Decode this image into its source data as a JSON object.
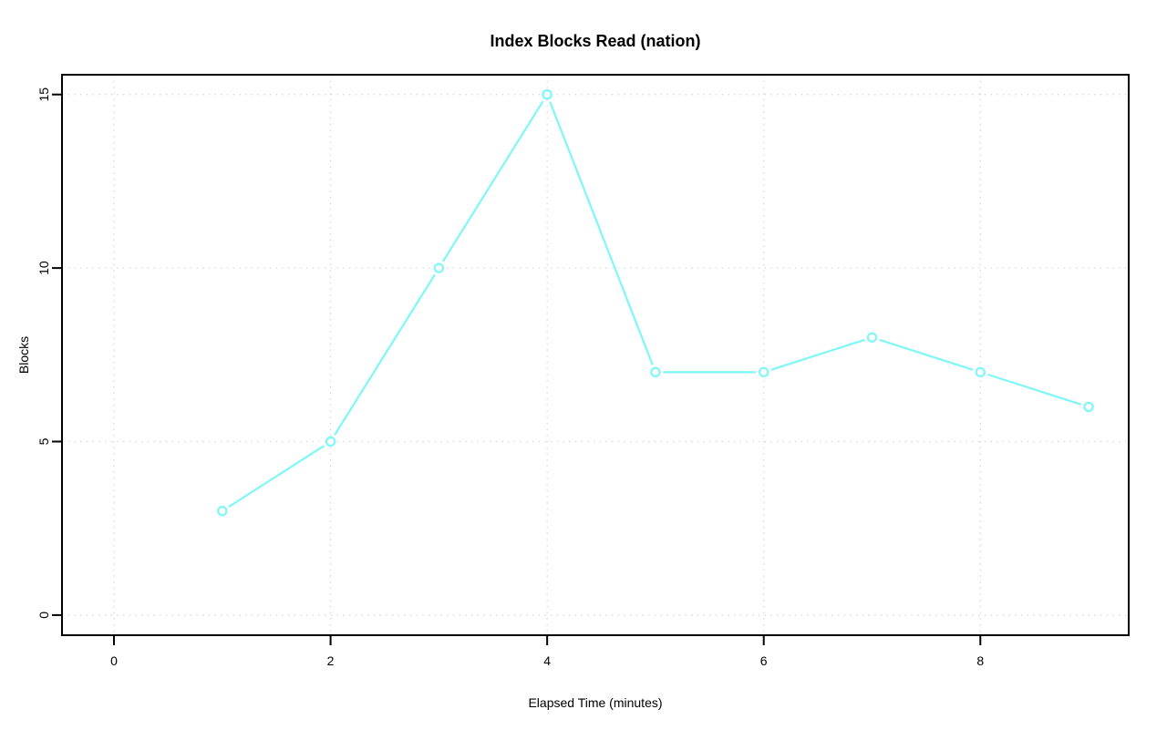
{
  "chart_data": {
    "type": "line",
    "title": "Index Blocks Read (nation)",
    "xlabel": "Elapsed Time (minutes)",
    "ylabel": "Blocks",
    "x": [
      1,
      2,
      3,
      4,
      5,
      6,
      7,
      8,
      9
    ],
    "y": [
      3,
      5,
      10,
      15,
      7,
      7,
      8,
      7,
      6
    ],
    "x_tick_labels": [
      "0",
      "2",
      "4",
      "6",
      "8"
    ],
    "x_tick_values": [
      0,
      2,
      4,
      6,
      8
    ],
    "y_tick_labels": [
      "0",
      "5",
      "10",
      "15"
    ],
    "y_tick_values": [
      0,
      5,
      10,
      15
    ],
    "xlim": [
      -0.48,
      9.37
    ],
    "ylim": [
      -0.58,
      15.57
    ],
    "grid": "dotted",
    "legend": "none",
    "marker": "open-circle",
    "line_style": "segments-with-marker-gaps",
    "colors": {
      "series": "#7DF7F7",
      "grid": "#D8D8D8",
      "axis": "#000000",
      "background": "#FFFFFF"
    }
  }
}
